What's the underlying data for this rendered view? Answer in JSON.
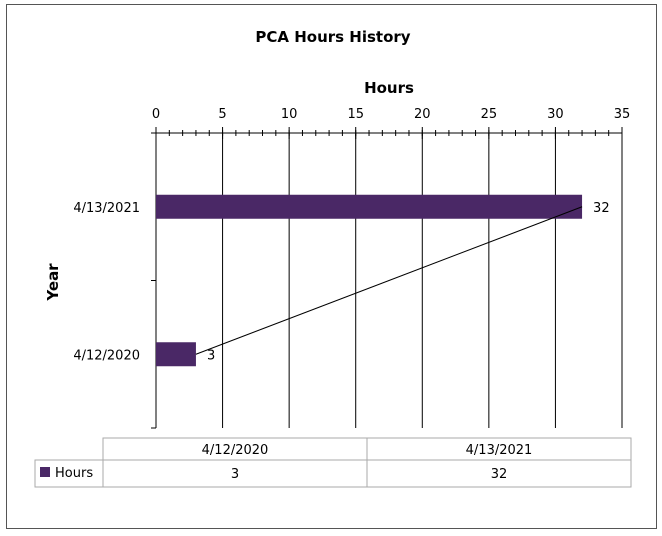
{
  "chart_data": {
    "type": "bar",
    "orientation": "horizontal",
    "title": "PCA Hours History",
    "xlabel": "Hours",
    "ylabel": "Year",
    "categories": [
      "4/12/2020",
      "4/13/2021"
    ],
    "series": [
      {
        "name": "Hours",
        "values": [
          3,
          32
        ],
        "color": "#4a2866"
      }
    ],
    "trendline": {
      "color": "#000000"
    },
    "xlim": [
      0,
      35
    ],
    "x_major_ticks": [
      0,
      5,
      10,
      15,
      20,
      25,
      30,
      35
    ],
    "x_minor_step": 1,
    "x_axis_position": "top",
    "grid": {
      "vertical_major": true
    },
    "data_table": {
      "headers": [
        "4/12/2020",
        "4/13/2021"
      ],
      "rows": [
        {
          "label": "Hours",
          "values": [
            "3",
            "32"
          ]
        }
      ]
    }
  }
}
